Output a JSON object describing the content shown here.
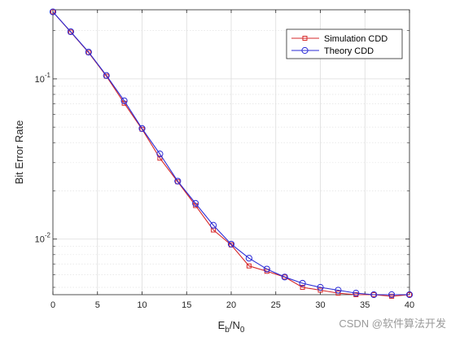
{
  "chart_data": {
    "type": "line",
    "xlabel_main": "E",
    "xlabel_sub1": "b",
    "xlabel_mid": "/N",
    "xlabel_sub2": "0",
    "ylabel": "Bit Error Rate",
    "xlim": [
      0,
      40
    ],
    "ylim": [
      0.0045,
      0.27
    ],
    "yscale": "log",
    "grid": true,
    "legend_position": "top-right",
    "x_ticks": [
      0,
      5,
      10,
      15,
      20,
      25,
      30,
      35,
      40
    ],
    "y_tick_labels": [
      {
        "value": 0.1,
        "base": "10",
        "exp": "-1"
      },
      {
        "value": 0.01,
        "base": "10",
        "exp": "-2"
      }
    ],
    "x": [
      0,
      2,
      4,
      6,
      8,
      10,
      12,
      14,
      16,
      18,
      20,
      22,
      24,
      26,
      28,
      30,
      32,
      34,
      36,
      38,
      40
    ],
    "series": [
      {
        "name": "Simulation CDD",
        "color": "#d62728",
        "marker": "square",
        "values": [
          0.262,
          0.196,
          0.146,
          0.104,
          0.0705,
          0.0485,
          0.032,
          0.0228,
          0.0162,
          0.0114,
          0.0092,
          0.0068,
          0.0063,
          0.0058,
          0.005,
          0.0048,
          0.0046,
          0.0045,
          0.0045,
          0.0044,
          0.0045
        ]
      },
      {
        "name": "Theory CDD",
        "color": "#2b2bd6",
        "marker": "circle",
        "values": [
          0.262,
          0.197,
          0.147,
          0.105,
          0.073,
          0.049,
          0.034,
          0.023,
          0.0167,
          0.0122,
          0.0093,
          0.0076,
          0.0065,
          0.0058,
          0.0053,
          0.005,
          0.0048,
          0.0046,
          0.0045,
          0.0045,
          0.0045
        ]
      }
    ]
  },
  "watermark": "CSDN @软件算法开发"
}
